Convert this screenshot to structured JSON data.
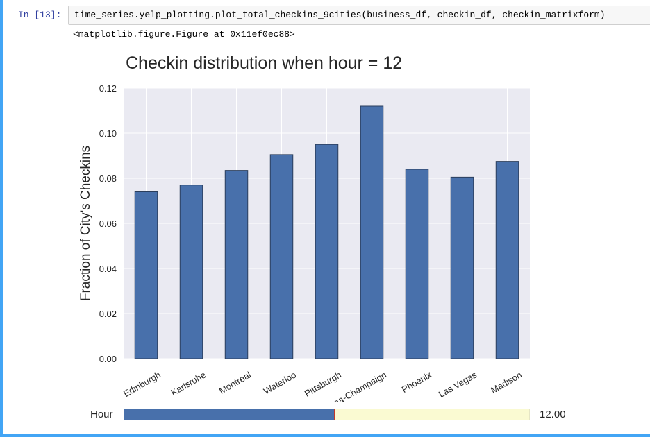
{
  "cell": {
    "prompt": "In [13]:",
    "code": "time_series.yelp_plotting.plot_total_checkins_9cities(business_df, checkin_df, checkin_matrixform)",
    "output_text": "<matplotlib.figure.Figure at 0x11ef0ec88>"
  },
  "chart_data": {
    "type": "bar",
    "title": "Checkin distribution when hour = 12",
    "xlabel": "",
    "ylabel": "Fraction of City's Checkins",
    "categories": [
      "Edinburgh",
      "Karlsruhe",
      "Montreal",
      "Waterloo",
      "Pittsburgh",
      "Urbana-Champaign",
      "Phoenix",
      "Las Vegas",
      "Madison"
    ],
    "values": [
      0.074,
      0.077,
      0.0835,
      0.0905,
      0.095,
      0.112,
      0.084,
      0.0805,
      0.0875
    ],
    "ylim": [
      0,
      0.12
    ],
    "yticks": [
      "0.00",
      "0.02",
      "0.04",
      "0.06",
      "0.08",
      "0.10",
      "0.12"
    ],
    "grid": true,
    "bar_color": "#4870ab",
    "bar_edge_color": "#2b3e5c",
    "plot_background": "#eaeaf2"
  },
  "widget": {
    "label": "Hour",
    "value_text": "12.00",
    "value": 12,
    "min": 0,
    "max": 23,
    "fill_color": "#4870ab",
    "track_color": "#fafad2"
  }
}
